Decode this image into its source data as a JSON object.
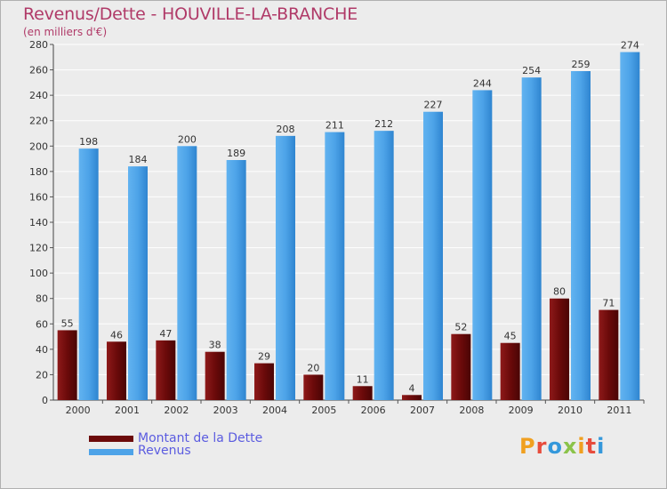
{
  "title": "Revenus/Dette - HOUVILLE-LA-BRANCHE",
  "subtitle": "(en milliers d'€)",
  "logo": {
    "text": "Proxiti"
  },
  "colors": {
    "debt": "#6b0a0a",
    "revenue": "#4da3e8",
    "title": "#b03a68",
    "legend_text": "#5b5ce0"
  },
  "chart_data": {
    "type": "bar",
    "categories": [
      "2000",
      "2001",
      "2002",
      "2003",
      "2004",
      "2005",
      "2006",
      "2007",
      "2008",
      "2009",
      "2010",
      "2011"
    ],
    "series": [
      {
        "name": "Montant de la Dette",
        "values": [
          55,
          46,
          47,
          38,
          29,
          20,
          11,
          4,
          52,
          45,
          80,
          71
        ]
      },
      {
        "name": "Revenus",
        "values": [
          198,
          184,
          200,
          189,
          208,
          211,
          212,
          227,
          244,
          254,
          259,
          274
        ]
      }
    ],
    "ylim": [
      0,
      280
    ],
    "yticks": [
      "0",
      "20",
      "40",
      "60",
      "80",
      "100",
      "120",
      "140",
      "160",
      "180",
      "200",
      "220",
      "240",
      "260",
      "280"
    ],
    "grid": true,
    "legend": "bottom-left"
  }
}
